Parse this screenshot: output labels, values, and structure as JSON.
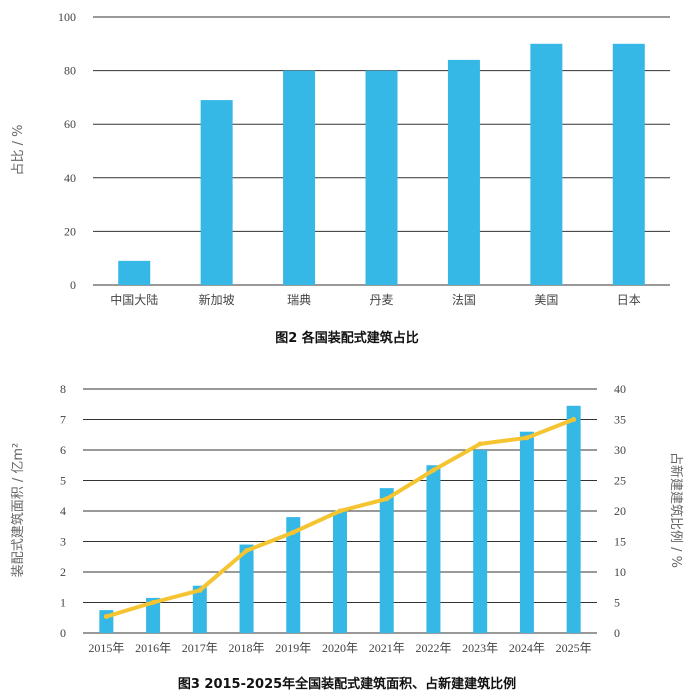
{
  "chart_data": [
    {
      "type": "bar",
      "title": "图2 各国装配式建筑占比",
      "ylabel": "占比 / %",
      "xlabel": "",
      "ylim": [
        0,
        100
      ],
      "yticks": [
        0,
        20,
        40,
        60,
        80,
        100
      ],
      "grid": true,
      "categories": [
        "中国大陆",
        "新加坡",
        "瑞典",
        "丹麦",
        "法国",
        "美国",
        "日本"
      ],
      "values": [
        9,
        69,
        80,
        80,
        84,
        90,
        90
      ],
      "colors": {
        "bar": "#35b8e6",
        "grid": "#333333"
      }
    },
    {
      "type": "bar+line",
      "title": "图3 2015-2025年全国装配式建筑面积、占新建建筑比例",
      "ylabel": "装配式建筑面积 / 亿m²",
      "y2label": "占新建建筑比例 / %",
      "xlabel": "",
      "ylim": [
        0,
        8
      ],
      "yticks": [
        0,
        1,
        2,
        3,
        4,
        5,
        6,
        7,
        8
      ],
      "y2lim": [
        0,
        40
      ],
      "y2ticks": [
        0,
        5,
        10,
        15,
        20,
        25,
        30,
        35,
        40
      ],
      "grid": true,
      "categories": [
        "2015年",
        "2016年",
        "2017年",
        "2018年",
        "2019年",
        "2020年",
        "2021年",
        "2022年",
        "2023年",
        "2024年",
        "2025年"
      ],
      "series": [
        {
          "type": "bar",
          "axis": "left",
          "values": [
            0.75,
            1.15,
            1.55,
            2.9,
            3.8,
            4.0,
            4.75,
            5.5,
            6.0,
            6.6,
            7.45
          ]
        },
        {
          "type": "line",
          "axis": "right",
          "values": [
            2.7,
            5.0,
            7.0,
            13.5,
            16.5,
            20.0,
            22.0,
            26.7,
            31.0,
            32.0,
            35.0
          ]
        }
      ],
      "colors": {
        "bar": "#35b8e6",
        "line": "#f5c431",
        "grid": "#333333"
      }
    }
  ]
}
